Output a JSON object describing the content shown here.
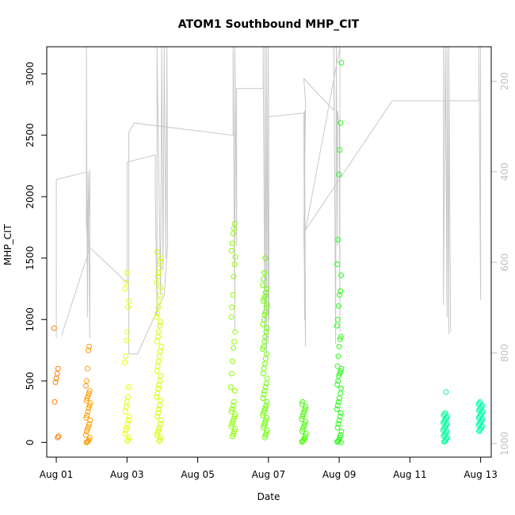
{
  "chart_data": {
    "type": "scatter",
    "title": "ATOM1 Southbound MHP_CIT",
    "xlabel": "Date",
    "ylabel": "MHP_CIT",
    "x_ticks": [
      {
        "day": 0,
        "label": "Aug 01"
      },
      {
        "day": 2,
        "label": "Aug 03"
      },
      {
        "day": 4,
        "label": "Aug 05"
      },
      {
        "day": 6,
        "label": "Aug 07"
      },
      {
        "day": 8,
        "label": "Aug 09"
      },
      {
        "day": 10,
        "label": "Aug 11"
      },
      {
        "day": 12,
        "label": "Aug 13"
      }
    ],
    "xlim_days": [
      -0.27,
      12.3
    ],
    "ylim": [
      -120,
      3220
    ],
    "y_ticks": [
      0,
      500,
      1000,
      1500,
      2000,
      2500,
      3000
    ],
    "y2_ticks": [
      200,
      400,
      600,
      800,
      1000
    ],
    "y2lim_reversed": [
      1030,
      124
    ],
    "grid": false,
    "legend": "none",
    "line_color": "#c8c8c8",
    "point_series": [
      {
        "day": 0.0,
        "color": "#ff8000",
        "values": [
          930,
          600,
          560,
          520,
          490,
          330,
          50,
          40
        ]
      },
      {
        "day": 0.9,
        "color": "#ff9d00",
        "values": [
          780,
          750,
          600,
          500,
          460,
          420,
          400,
          380,
          360,
          340,
          320,
          300,
          280,
          250,
          220,
          200,
          180,
          150,
          130,
          110,
          90,
          60,
          40,
          20,
          10,
          5,
          0
        ]
      },
      {
        "day": 2.0,
        "color": "#e6ff00",
        "values": [
          1380,
          1300,
          1250,
          1150,
          1100,
          900,
          830,
          700,
          650,
          450,
          370,
          330,
          290,
          250,
          210,
          180,
          150,
          120,
          100,
          70,
          40,
          20,
          10
        ]
      },
      {
        "day": 2.9,
        "color": "#d4ff00",
        "values": [
          1550,
          1500,
          1470,
          1420,
          1380,
          1350,
          1300,
          1260,
          1200,
          1150,
          1100,
          1050,
          1020,
          980,
          950,
          900,
          860,
          820,
          780,
          740,
          700,
          660,
          620,
          580,
          540,
          500,
          470,
          440,
          400,
          370,
          340,
          300,
          270,
          240,
          210,
          180,
          150,
          120,
          100,
          80,
          60,
          40,
          20,
          10
        ]
      },
      {
        "day": 5.0,
        "color": "#8cff00",
        "values": [
          1780,
          1740,
          1700,
          1620,
          1560,
          1510,
          1450,
          1350,
          1200,
          1100,
          1020,
          900,
          820,
          770,
          660,
          560,
          450,
          420,
          330,
          300,
          270,
          250,
          230,
          210,
          190,
          170,
          150,
          130,
          110,
          90,
          70,
          50
        ]
      },
      {
        "day": 5.9,
        "color": "#6cff00",
        "values": [
          1500,
          1380,
          1330,
          1280,
          1250,
          1220,
          1190,
          1170,
          1150,
          1120,
          1100,
          1060,
          1040,
          1000,
          960,
          930,
          900,
          860,
          820,
          780,
          760,
          720,
          680,
          640,
          600,
          560,
          520,
          480,
          450,
          420,
          390,
          360,
          330,
          300,
          280,
          260,
          240,
          220,
          200,
          180,
          160,
          140,
          120,
          100,
          80,
          60,
          40
        ]
      },
      {
        "day": 7.0,
        "color": "#44ff00",
        "values": [
          330,
          310,
          290,
          270,
          250,
          230,
          210,
          190,
          170,
          150,
          130,
          110,
          90,
          70,
          50,
          30,
          20,
          10,
          5
        ]
      },
      {
        "day": 8.0,
        "color": "#22ff11",
        "values": [
          3090,
          2600,
          2380,
          2180,
          1650,
          1450,
          1360,
          1230,
          1200,
          1110,
          1000,
          950,
          860,
          840,
          780,
          700,
          620,
          600,
          580,
          560,
          540,
          500,
          470,
          440,
          400,
          360,
          330,
          300,
          270,
          240,
          210,
          180,
          150,
          120,
          90,
          60,
          40,
          20,
          10,
          5,
          0
        ]
      },
      {
        "day": 11.0,
        "color": "#00ff9c",
        "values": [
          410,
          240,
          230,
          220,
          210,
          200,
          190,
          180,
          170,
          160,
          150,
          140,
          130,
          120,
          110,
          100,
          90,
          80,
          70,
          60,
          50,
          40,
          30,
          20,
          10,
          5
        ]
      },
      {
        "day": 12.0,
        "color": "#00ffaa",
        "values": [
          330,
          320,
          310,
          300,
          290,
          280,
          270,
          260,
          250,
          240,
          230,
          220,
          210,
          200,
          190,
          180,
          170,
          160,
          150,
          140,
          130,
          120,
          110,
          100,
          90
        ]
      }
    ],
    "line_trace": [
      [
        0.0,
        850
      ],
      [
        0.0,
        2140
      ],
      [
        0.85,
        2200
      ],
      [
        0.9,
        1540
      ],
      [
        0.15,
        870
      ],
      [
        0.9,
        1540
      ],
      [
        0.85,
        1780
      ],
      [
        0.85,
        3220
      ],
      [
        0.88,
        1020
      ],
      [
        0.9,
        2200
      ],
      [
        0.95,
        850
      ],
      [
        0.95,
        2220
      ],
      [
        0.9,
        1600
      ],
      [
        2.0,
        1300
      ],
      [
        2.0,
        2280
      ],
      [
        2.8,
        2340
      ],
      [
        2.8,
        2000
      ],
      [
        2.85,
        1030
      ],
      [
        2.85,
        3220
      ],
      [
        2.95,
        1200
      ],
      [
        2.98,
        3220
      ],
      [
        3.02,
        1400
      ],
      [
        3.05,
        3220
      ],
      [
        3.1,
        1500
      ],
      [
        3.13,
        3220
      ],
      [
        3.15,
        1600
      ],
      [
        3.05,
        1200
      ],
      [
        2.3,
        720
      ],
      [
        2.05,
        720
      ],
      [
        2.05,
        2520
      ],
      [
        2.2,
        2600
      ],
      [
        5.0,
        2500
      ],
      [
        5.0,
        3220
      ],
      [
        5.05,
        900
      ],
      [
        5.05,
        3220
      ],
      [
        5.1,
        1600
      ],
      [
        5.1,
        2880
      ],
      [
        5.85,
        2880
      ],
      [
        5.85,
        3220
      ],
      [
        5.9,
        800
      ],
      [
        5.9,
        3220
      ],
      [
        5.95,
        700
      ],
      [
        5.95,
        3220
      ],
      [
        6.0,
        800
      ],
      [
        6.0,
        3220
      ],
      [
        6.02,
        1000
      ],
      [
        6.0,
        2650
      ],
      [
        7.0,
        2680
      ],
      [
        7.02,
        1000
      ],
      [
        7.02,
        2700
      ],
      [
        7.05,
        780
      ],
      [
        7.0,
        1700
      ],
      [
        7.05,
        2760
      ],
      [
        7.0,
        2960
      ],
      [
        7.85,
        2700
      ],
      [
        7.85,
        3220
      ],
      [
        7.9,
        800
      ],
      [
        7.92,
        3220
      ],
      [
        7.95,
        1600
      ],
      [
        7.95,
        2700
      ],
      [
        8.0,
        2580
      ],
      [
        8.02,
        900
      ],
      [
        8.02,
        3220
      ],
      [
        7.05,
        1730
      ],
      [
        9.5,
        2780
      ],
      [
        11.95,
        2780
      ],
      [
        11.95,
        3220
      ],
      [
        12.0,
        1160
      ],
      [
        12.0,
        3220
      ],
      [
        10.95,
        3220
      ],
      [
        10.95,
        1120
      ],
      [
        11.0,
        3220
      ],
      [
        11.05,
        1020
      ],
      [
        11.05,
        3220
      ],
      [
        11.1,
        880
      ],
      [
        11.1,
        3220
      ],
      [
        11.15,
        900
      ]
    ]
  }
}
